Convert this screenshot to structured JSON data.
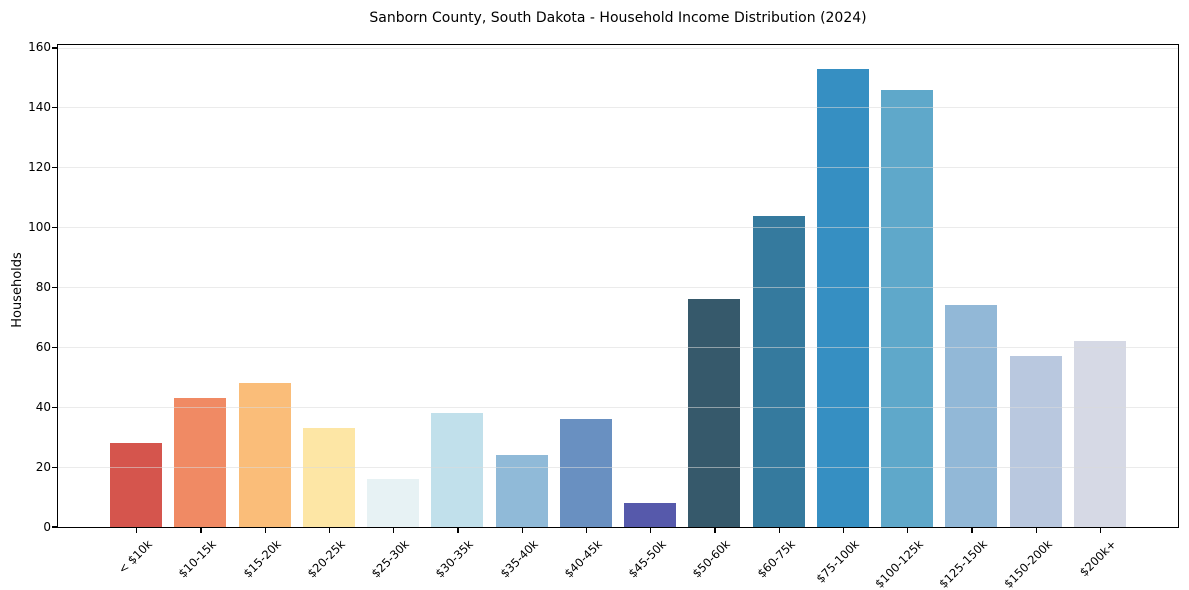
{
  "title": "Sanborn County, South Dakota - Household Income Distribution (2024)",
  "y_axis": {
    "label": "Households"
  },
  "chart_data": {
    "type": "bar",
    "title": "Sanborn County, South Dakota - Household Income Distribution (2024)",
    "xlabel": "",
    "ylabel": "Households",
    "categories": [
      "< $10k",
      "$10-15k",
      "$15-20k",
      "$20-25k",
      "$25-30k",
      "$30-35k",
      "$35-40k",
      "$40-45k",
      "$45-50k",
      "$50-60k",
      "$60-75k",
      "$75-100k",
      "$100-125k",
      "$125-150k",
      "$150-200k",
      "$200k+"
    ],
    "values": [
      28,
      43,
      48,
      33,
      16,
      38,
      24,
      36,
      8,
      76,
      104,
      153,
      146,
      74,
      57,
      62
    ],
    "bar_colors": [
      "#d5554d",
      "#f08a64",
      "#fabd79",
      "#fde6a5",
      "#e7f2f4",
      "#c1e0eb",
      "#90bad8",
      "#6990c1",
      "#5659ab",
      "#36596b",
      "#357a9e",
      "#368fc2",
      "#5fa8ca",
      "#92b8d7",
      "#b9c8df",
      "#d6d9e5"
    ],
    "ylim": [
      0,
      161
    ],
    "yticks": [
      0,
      20,
      40,
      60,
      80,
      100,
      120,
      140,
      160
    ],
    "ytick_labels": [
      "0",
      "20",
      "40",
      "60",
      "80",
      "100",
      "120",
      "140",
      "160"
    ],
    "grid": "horizontal, drawn over bars",
    "legend": "none",
    "x_tick_rotation": 45
  }
}
